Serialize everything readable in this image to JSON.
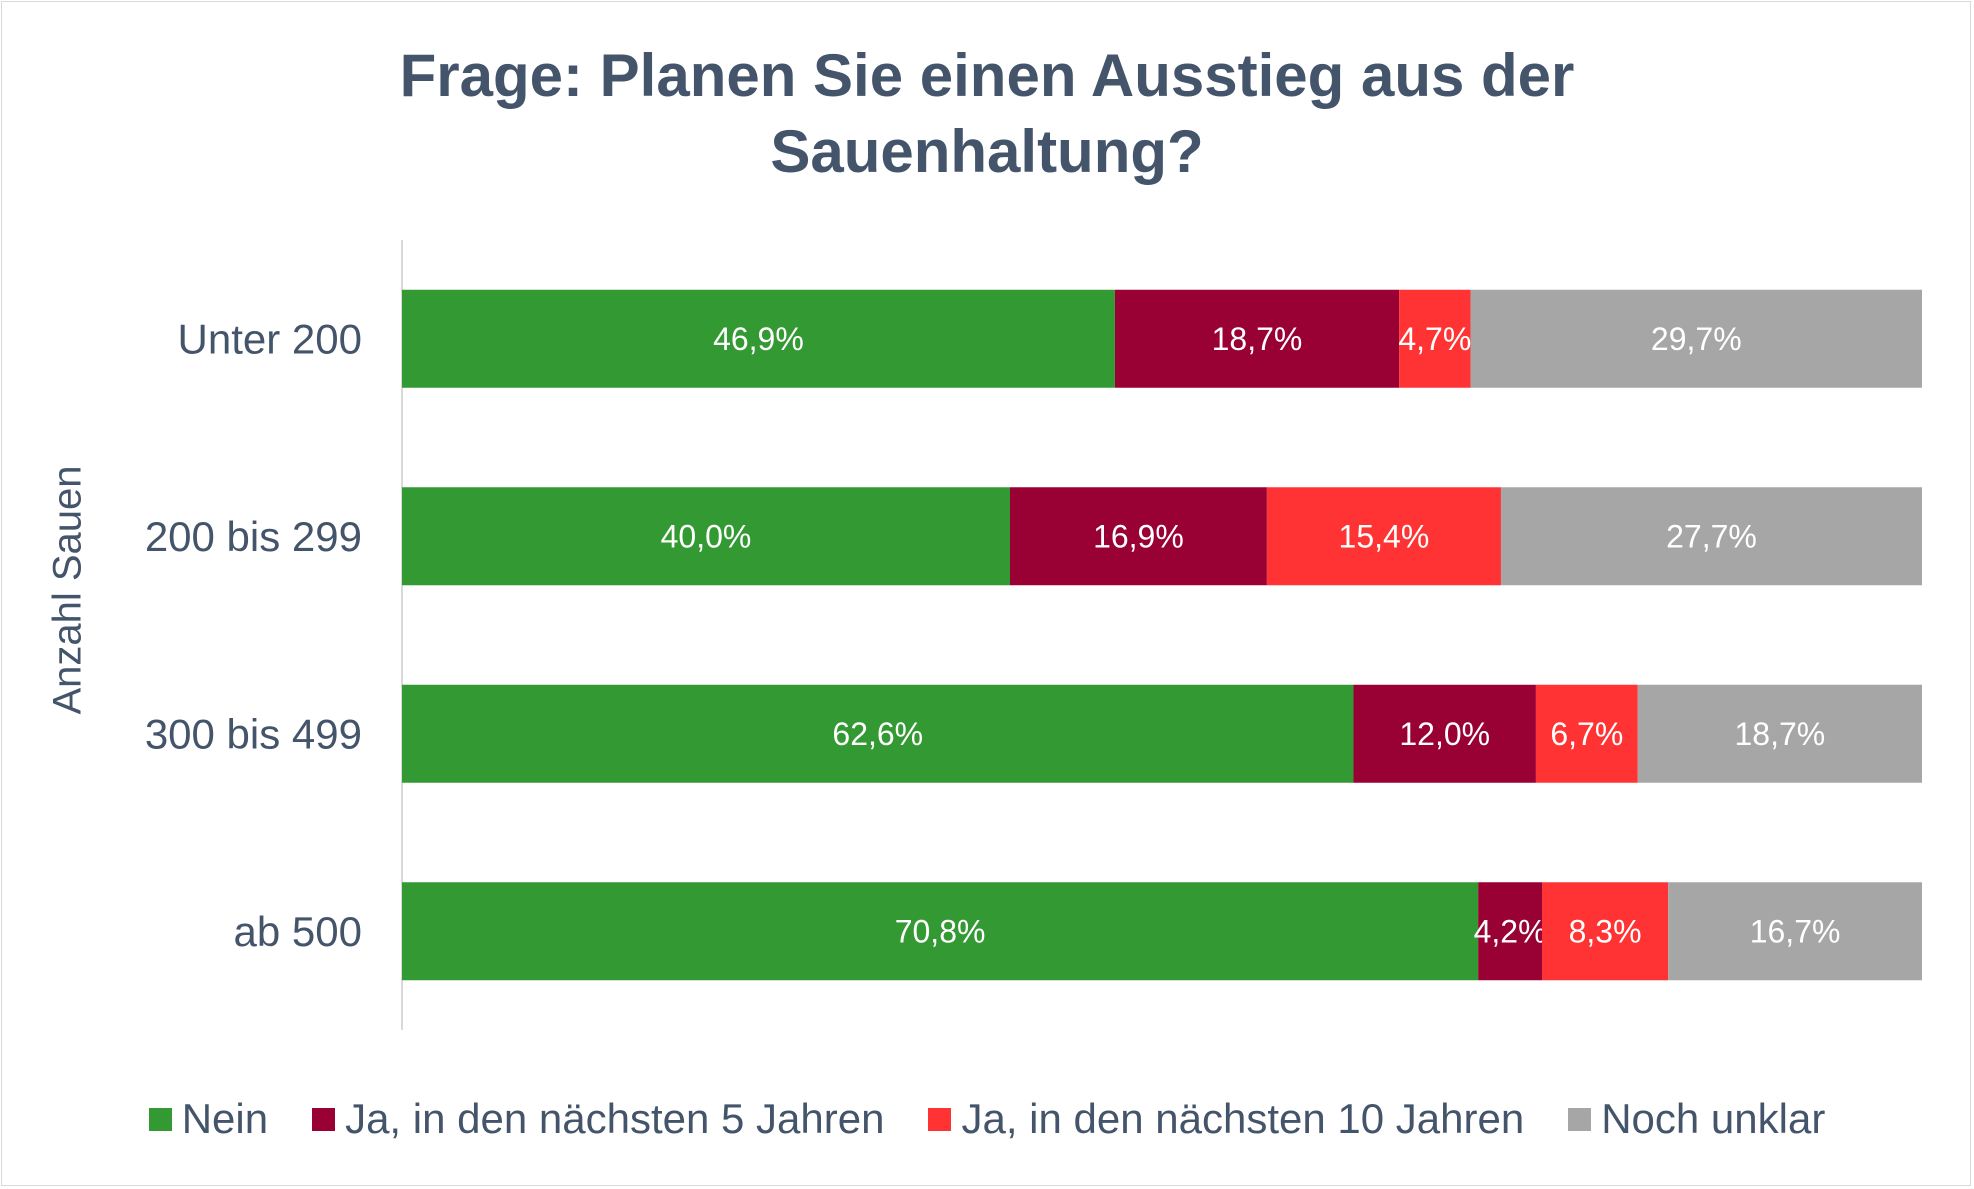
{
  "chart_data": {
    "type": "bar",
    "orientation": "horizontal",
    "stacked": true,
    "title_lines": [
      "Frage: Planen Sie einen Ausstieg aus der",
      "Sauenhaltung?"
    ],
    "ylabel": "Anzahl Sauen",
    "xlabel": "",
    "xlim": [
      0,
      100
    ],
    "grid": false,
    "legend_position": "bottom",
    "categories": [
      "Unter 200",
      "200 bis 299",
      "300 bis 499",
      "ab 500"
    ],
    "series": [
      {
        "name": "Nein",
        "color": "#339933",
        "values": [
          46.9,
          40.0,
          62.6,
          70.8
        ],
        "labels": [
          "46,9%",
          "40,0%",
          "62,6%",
          "70,8%"
        ]
      },
      {
        "name": "Ja, in den nächsten 5 Jahren",
        "color": "#990033",
        "values": [
          18.7,
          16.9,
          12.0,
          4.2
        ],
        "labels": [
          "18,7%",
          "16,9%",
          "12,0%",
          "4,2%"
        ]
      },
      {
        "name": "Ja, in den nächsten 10 Jahren",
        "color": "#ff3333",
        "values": [
          4.7,
          15.4,
          6.7,
          8.3
        ],
        "labels": [
          "4,7%",
          "15,4%",
          "6,7%",
          "8,3%"
        ]
      },
      {
        "name": "Noch unklar",
        "color": "#a6a6a6",
        "values": [
          29.7,
          27.7,
          18.7,
          16.7
        ],
        "labels": [
          "29,7%",
          "27,7%",
          "18,7%",
          "16,7%"
        ]
      }
    ]
  }
}
